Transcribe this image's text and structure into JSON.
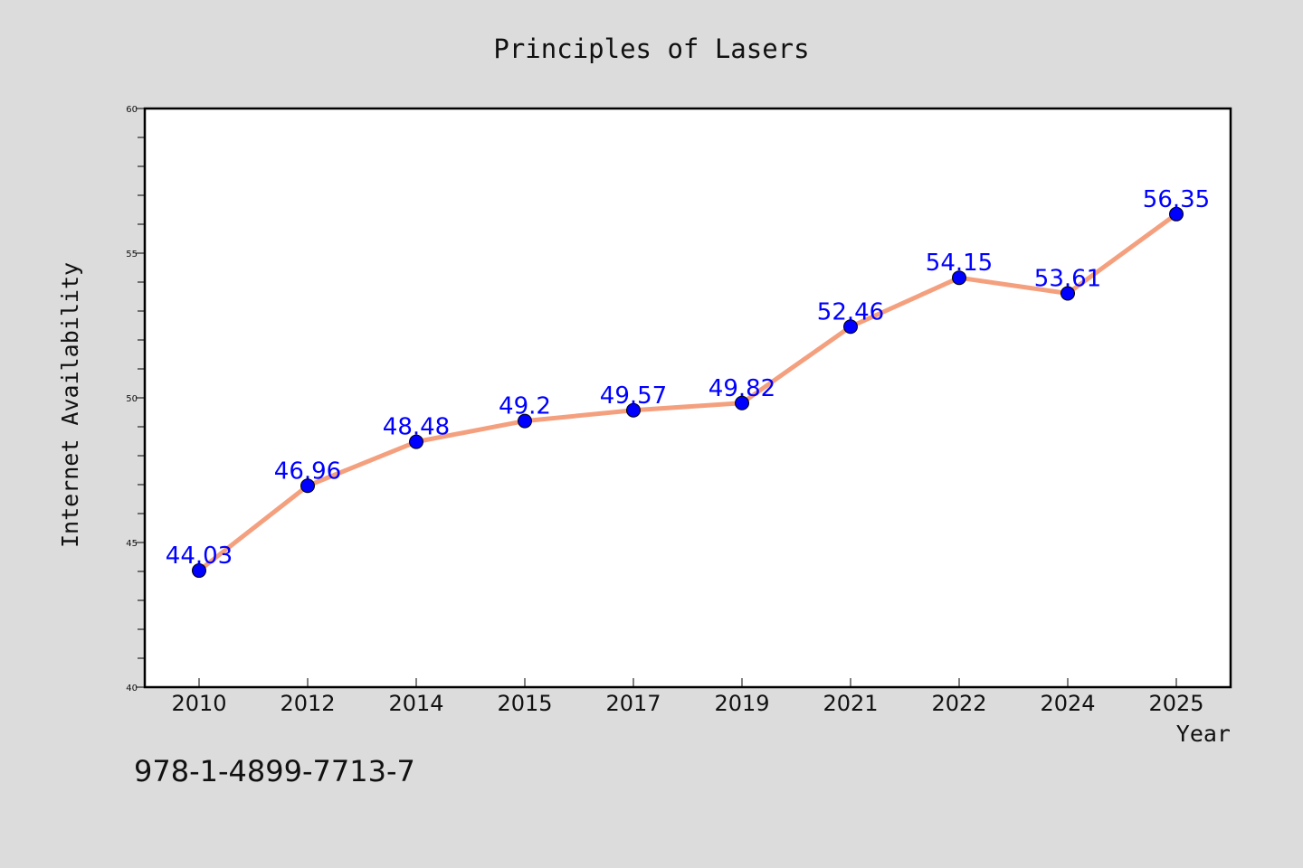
{
  "chart_data": {
    "type": "line",
    "title": "Principles of Lasers",
    "xlabel": "Year",
    "ylabel": "Internet Availability",
    "categories": [
      "2010",
      "2012",
      "2014",
      "2015",
      "2017",
      "2019",
      "2021",
      "2022",
      "2024",
      "2025"
    ],
    "values": [
      44.03,
      46.96,
      48.48,
      49.2,
      49.57,
      49.82,
      52.46,
      54.15,
      53.61,
      56.35
    ],
    "value_labels": [
      "44.03",
      "46.96",
      "48.48",
      "49.2",
      "49.57",
      "49.82",
      "52.46",
      "54.15",
      "53.61",
      "56.35"
    ],
    "ylim": [
      40,
      60
    ],
    "yticks": [
      40,
      45,
      50,
      55,
      60
    ],
    "grid": false,
    "line_color": "#f4a07e",
    "marker_color": "#0000ff",
    "label_color": "#0000ff"
  },
  "footnote": "978-1-4899-7713-7"
}
